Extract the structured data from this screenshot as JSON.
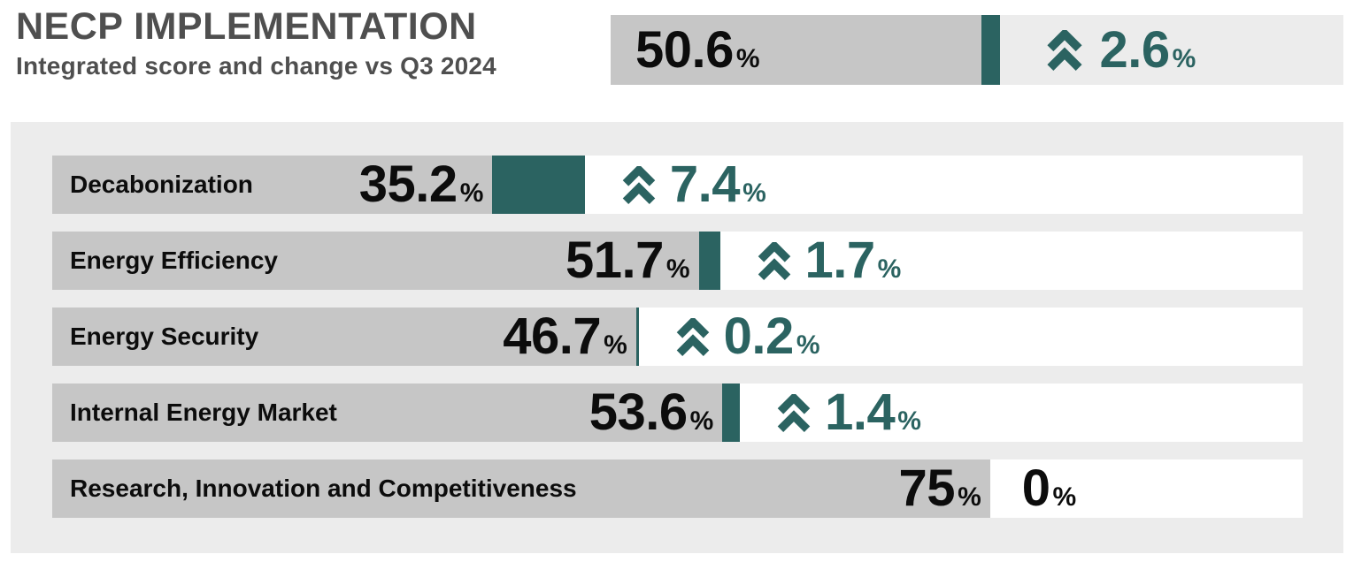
{
  "colors": {
    "teal": "#2b6361",
    "bar_gray": "#c6c6c6",
    "panel_gray": "#ececec",
    "title_gray": "#4f4f4f",
    "text_black": "#0c0c0c",
    "row_white": "#ffffff"
  },
  "icons": {
    "change_indicator": "double-chevron-up-icon"
  },
  "chart_data": {
    "type": "bar",
    "title": "NECP IMPLEMENTATION",
    "subtitle": "Integrated score and change vs Q3 2024",
    "unit": "%",
    "xlim": [
      0,
      100
    ],
    "legend_position": "none",
    "grid": false,
    "overall": {
      "score": 50.6,
      "change": 2.6
    },
    "rows": [
      {
        "label": "Decabonization",
        "score": 35.2,
        "change": 7.4
      },
      {
        "label": "Energy Efficiency",
        "score": 51.7,
        "change": 1.7
      },
      {
        "label": "Energy Security",
        "score": 46.7,
        "change": 0.2
      },
      {
        "label": "Internal Energy Market",
        "score": 53.6,
        "change": 1.4
      },
      {
        "label": "Research, Innovation and Competitiveness",
        "score": 75,
        "change": 0
      }
    ]
  }
}
